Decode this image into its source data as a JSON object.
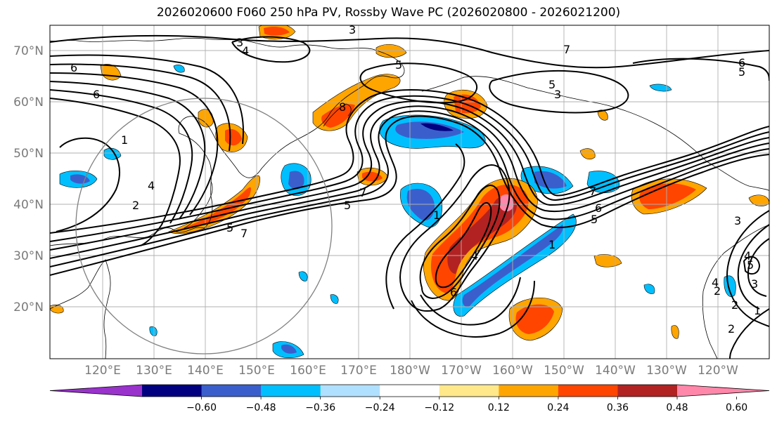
{
  "title": "2026020600 F060 250 hPa PV, Rossby Wave PC (2026020800 - 2026021200)",
  "longitude_labels": [
    "120°E",
    "130°E",
    "140°E",
    "150°E",
    "160°E",
    "170°E",
    "180°W",
    "170°W",
    "160°W",
    "150°W",
    "140°W",
    "130°W",
    "120°W"
  ],
  "latitude_labels": [
    "70°N",
    "60°N",
    "50°N",
    "40°N",
    "30°N",
    "20°N"
  ],
  "contour_labels": [
    "6",
    "6",
    "4",
    "3",
    "3",
    "5",
    "7",
    "5",
    "8",
    "7",
    "5",
    "5",
    "6",
    "7",
    "6",
    "5",
    "1",
    "2",
    "4",
    "3",
    "5",
    "4",
    "6",
    "1",
    "2",
    "3",
    "4",
    "2",
    "1",
    "5",
    "7",
    "3",
    "1",
    "4",
    "2"
  ],
  "colorbar": {
    "tick_labels": [
      "−0.60",
      "−0.48",
      "−0.36",
      "−0.24",
      "−0.12",
      "0.12",
      "0.24",
      "0.36",
      "0.48",
      "0.60"
    ],
    "colors": [
      "#9933cc",
      "#000080",
      "#3a5fcd",
      "#00bfff",
      "#b0e0ff",
      "#ffffff",
      "#ffe88a",
      "#ffa500",
      "#ff4500",
      "#b22222",
      "#ff88aa"
    ]
  },
  "chart_data": {
    "type": "heatmap",
    "title": "2026020600 F060 250 hPa PV, Rossby Wave PC (2026020800 - 2026021200)",
    "variable_contours": "250 hPa PV (PVU)",
    "variable_shading": "Rossby Wave PC",
    "xlim": [
      "112°E",
      "115°W"
    ],
    "ylim": [
      "10°N",
      "75°N"
    ],
    "shading_levels": [
      -0.6,
      -0.48,
      -0.36,
      -0.24,
      -0.12,
      0.12,
      0.24,
      0.36,
      0.48,
      0.6
    ],
    "contour_values_labeled": [
      1,
      2,
      3,
      4,
      5,
      6,
      7,
      8
    ]
  }
}
